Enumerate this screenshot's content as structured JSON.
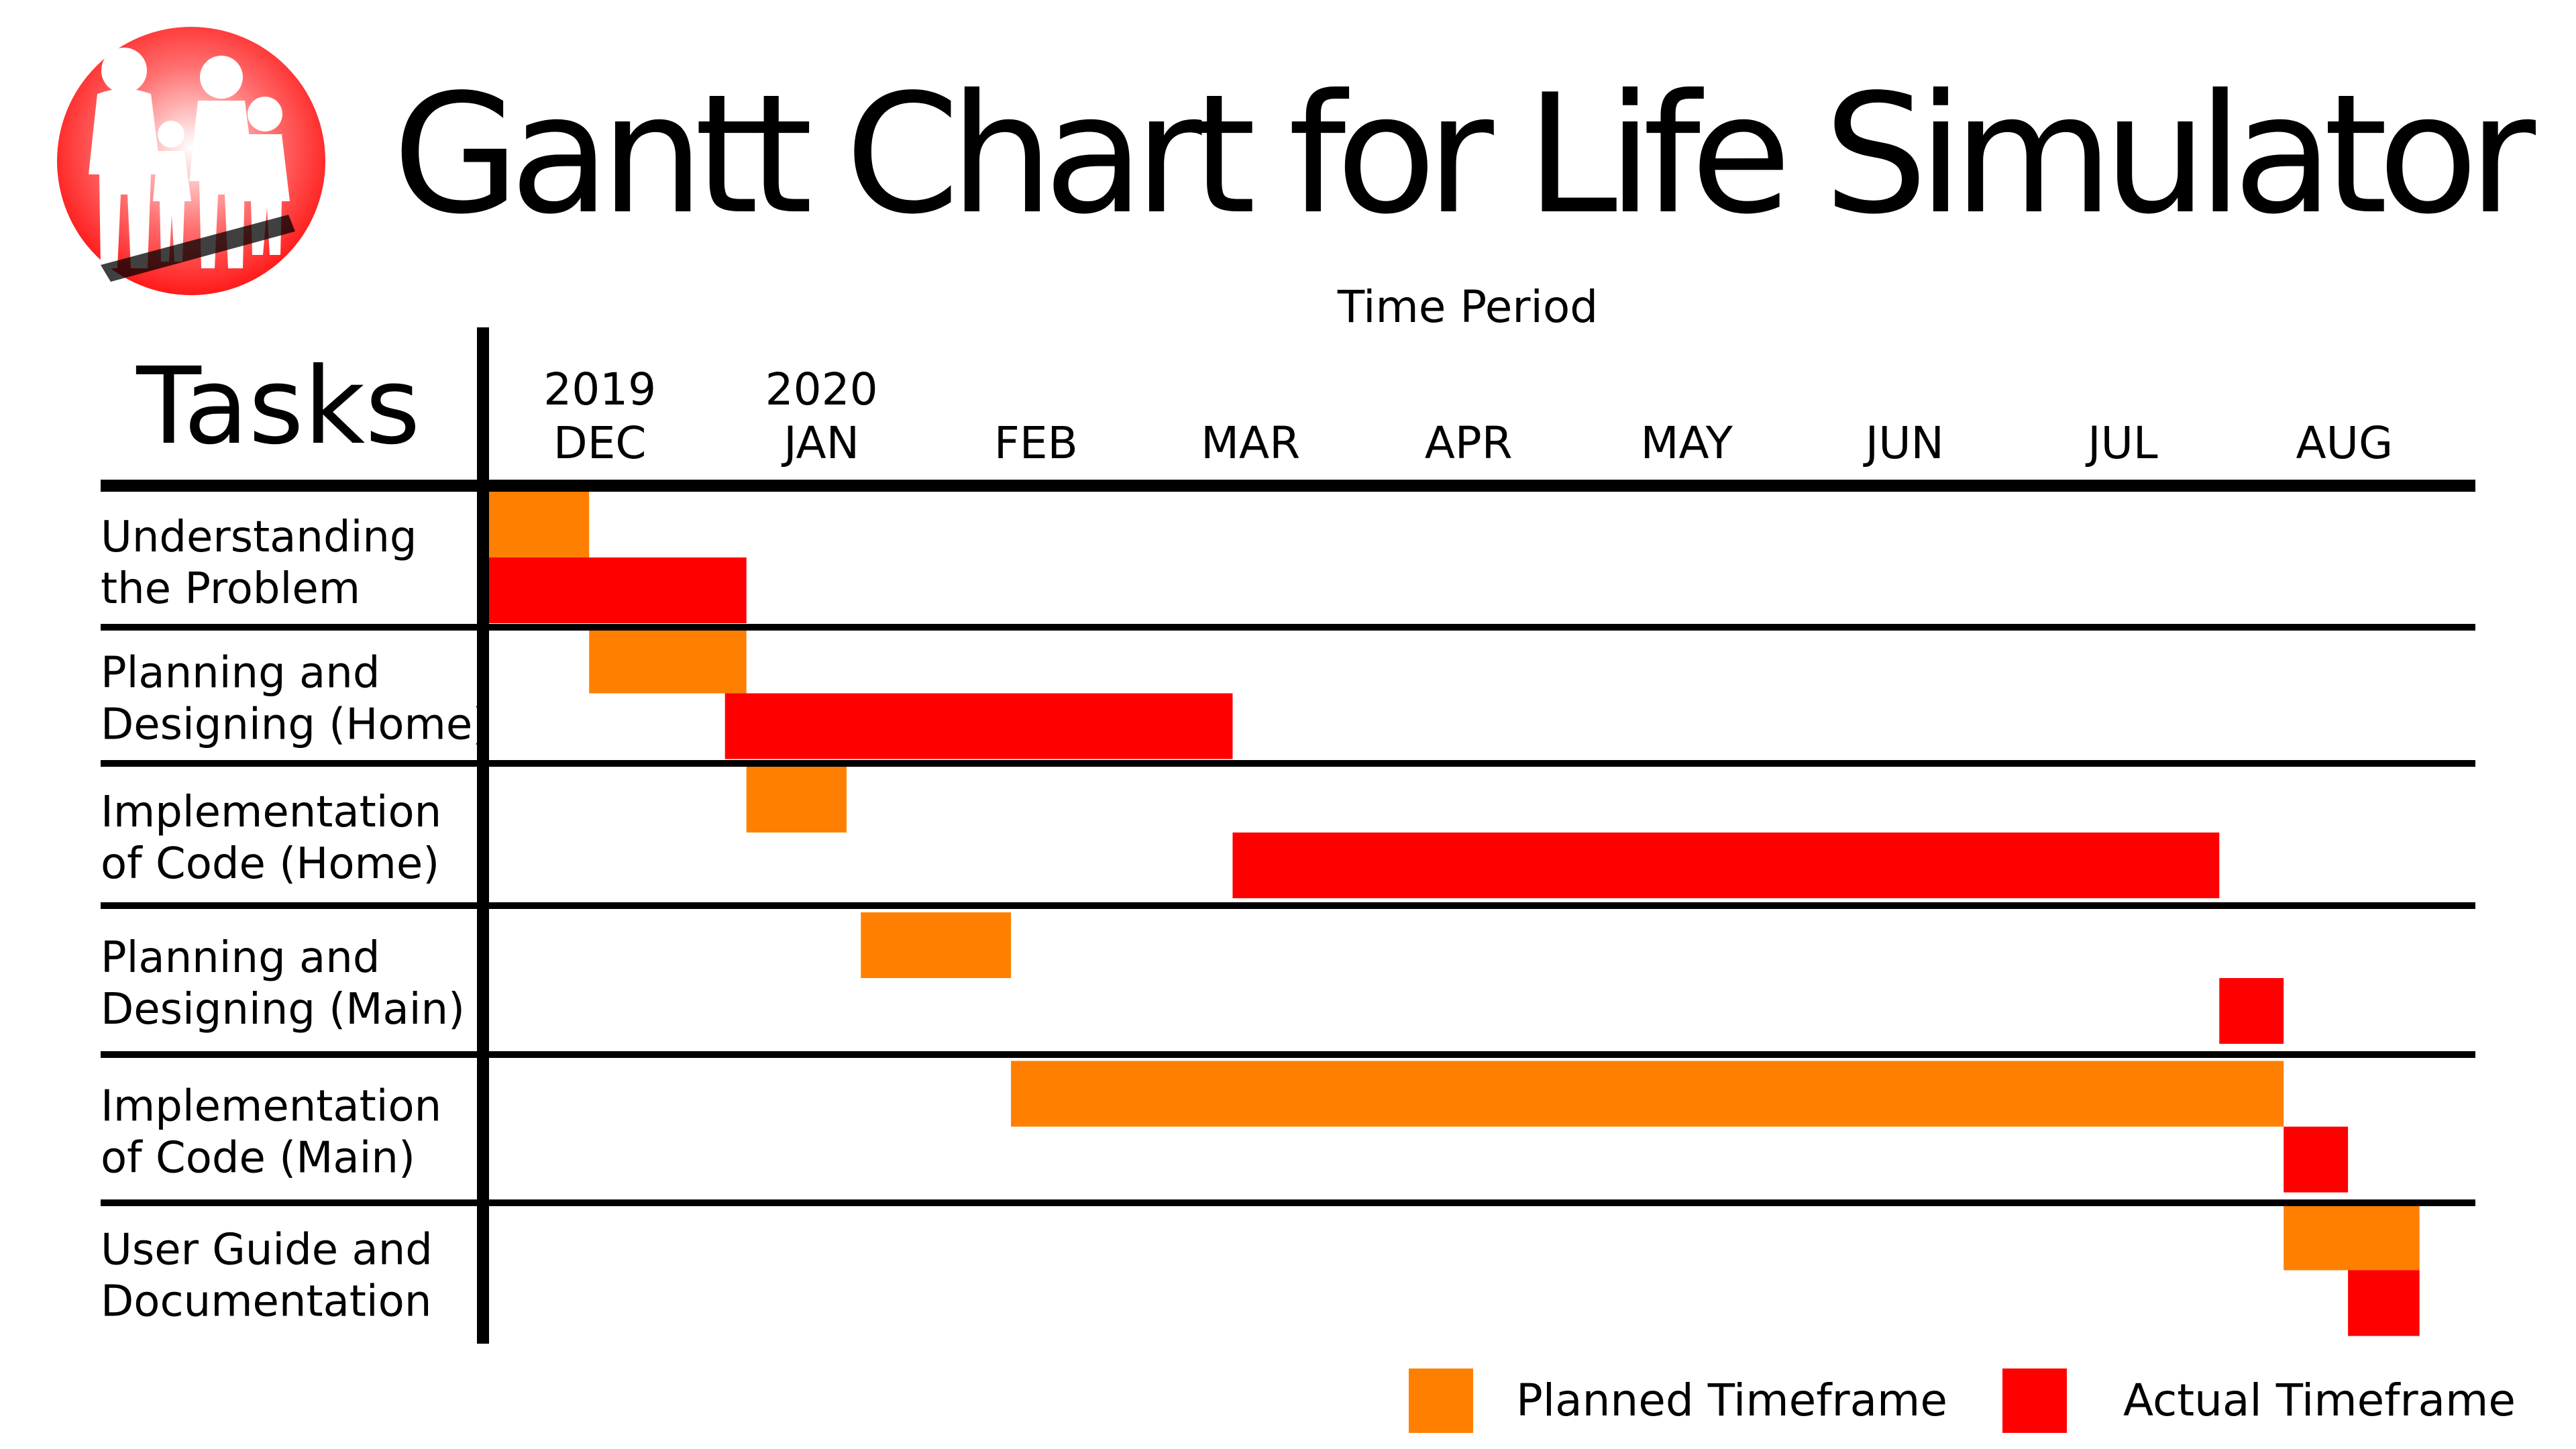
{
  "chart_data": {
    "type": "gantt",
    "title": "Gantt Chart for Life Simulator",
    "xlabel": "Time Period",
    "ylabel": "Tasks",
    "year_labels": [
      {
        "label": "2019",
        "month": "DEC"
      },
      {
        "label": "2020",
        "month": "JAN"
      }
    ],
    "months": [
      "DEC",
      "JAN",
      "FEB",
      "MAR",
      "APR",
      "MAY",
      "JUN",
      "JUL",
      "AUG"
    ],
    "x_range": [
      "2019-12-01",
      "2020-08-31"
    ],
    "tasks": [
      {
        "label": "Understanding the Problem",
        "lines": [
          "Understanding",
          "the Problem"
        ]
      },
      {
        "label": "Planning and Designing (Home)",
        "lines": [
          "Planning and",
          "Designing (Home)"
        ]
      },
      {
        "label": "Implementation of Code (Home)",
        "lines": [
          "Implementation",
          "of Code (Home)"
        ]
      },
      {
        "label": "Planning and Designing (Main)",
        "lines": [
          "Planning and",
          "Designing (Main)"
        ]
      },
      {
        "label": "Implementation of Code (Main)",
        "lines": [
          "Implementation",
          "of Code (Main)"
        ]
      },
      {
        "label": "User Guide and Documentation",
        "lines": [
          "User Guide and",
          "Documentation"
        ]
      }
    ],
    "series": [
      {
        "name": "Planned Timeframe",
        "color": "#ff8000",
        "bars": [
          {
            "task": 0,
            "start": "2019-12-01",
            "end": "2019-12-15"
          },
          {
            "task": 1,
            "start": "2019-12-15",
            "end": "2020-01-06"
          },
          {
            "task": 2,
            "start": "2020-01-06",
            "end": "2020-01-20"
          },
          {
            "task": 3,
            "start": "2020-01-22",
            "end": "2020-02-12"
          },
          {
            "task": 4,
            "start": "2020-02-12",
            "end": "2020-08-08"
          },
          {
            "task": 5,
            "start": "2020-08-08",
            "end": "2020-08-27"
          }
        ]
      },
      {
        "name": "Actual Timeframe",
        "color": "#ff0000",
        "bars": [
          {
            "task": 0,
            "start": "2019-12-01",
            "end": "2020-01-06"
          },
          {
            "task": 1,
            "start": "2020-01-03",
            "end": "2020-03-14"
          },
          {
            "task": 2,
            "start": "2020-03-14",
            "end": "2020-07-30"
          },
          {
            "task": 3,
            "start": "2020-07-30",
            "end": "2020-08-08"
          },
          {
            "task": 4,
            "start": "2020-08-08",
            "end": "2020-08-17"
          },
          {
            "task": 5,
            "start": "2020-08-17",
            "end": "2020-08-27"
          }
        ]
      }
    ],
    "legend": {
      "position": "bottom-right"
    },
    "grid": false
  },
  "logo": {
    "name": "family-silhouette-logo-icon",
    "colors": [
      "#ff2a2a",
      "#ffffff"
    ]
  }
}
